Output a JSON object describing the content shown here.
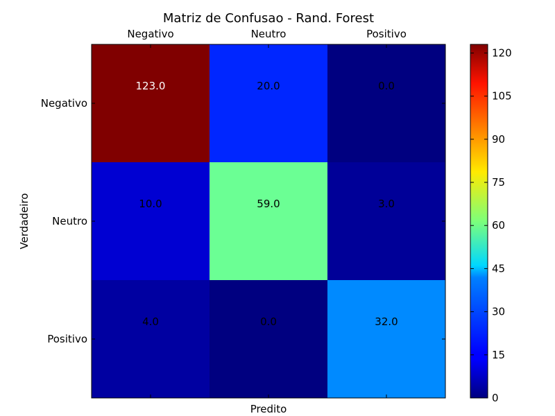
{
  "chart_data": {
    "type": "heatmap",
    "title": "Matriz de Confusao - Rand. Forest",
    "xlabel": "Predito",
    "ylabel": "Verdadeiro",
    "x_categories": [
      "Negativo",
      "Neutro",
      "Positivo"
    ],
    "y_categories": [
      "Negativo",
      "Neutro",
      "Positivo"
    ],
    "values": [
      [
        123.0,
        20.0,
        0.0
      ],
      [
        10.0,
        59.0,
        3.0
      ],
      [
        4.0,
        0.0,
        32.0
      ]
    ],
    "cell_labels": [
      [
        "123.0",
        "20.0",
        "0.0"
      ],
      [
        "10.0",
        "59.0",
        "3.0"
      ],
      [
        "4.0",
        "0.0",
        "32.0"
      ]
    ],
    "colormap": "jet",
    "vmin": 0,
    "vmax": 123,
    "colorbar_ticks": [
      "0",
      "15",
      "30",
      "45",
      "60",
      "75",
      "90",
      "105",
      "120"
    ],
    "x_tick_position": "top",
    "grid": false
  }
}
